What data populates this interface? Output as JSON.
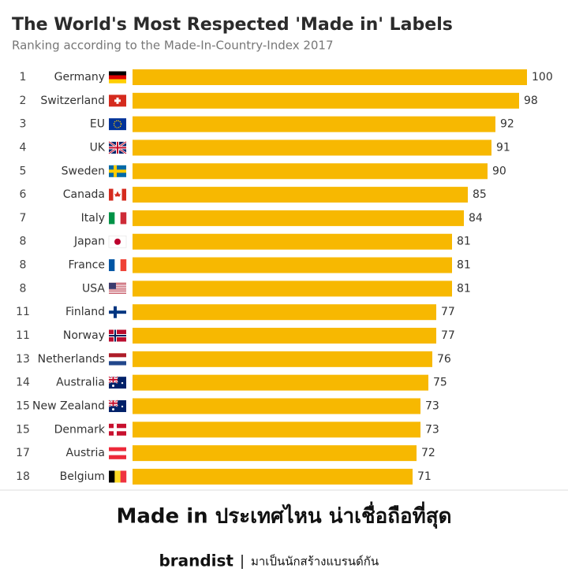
{
  "chart_data": {
    "type": "bar",
    "orientation": "horizontal",
    "title": "The World's Most Respected 'Made in' Labels",
    "subtitle": "Ranking according to the Made-In-Country-Index 2017",
    "ranks": [
      1,
      2,
      3,
      4,
      5,
      6,
      7,
      8,
      8,
      8,
      11,
      11,
      13,
      14,
      15,
      15,
      17,
      18
    ],
    "categories": [
      "Germany",
      "Switzerland",
      "EU",
      "UK",
      "Sweden",
      "Canada",
      "Italy",
      "Japan",
      "France",
      "USA",
      "Finland",
      "Norway",
      "Netherlands",
      "Australia",
      "New Zealand",
      "Denmark",
      "Austria",
      "Belgium"
    ],
    "values": [
      100,
      98,
      92,
      91,
      90,
      85,
      84,
      81,
      81,
      81,
      77,
      77,
      76,
      75,
      73,
      73,
      72,
      71
    ],
    "color": "#f7b801"
  },
  "footer": {
    "headline": "Made in ประเทศไหน  น่าเชื่อถือที่สุด",
    "brand": "brandist",
    "tagline": "มาเป็นนักสร้างแบรนด์กัน"
  }
}
